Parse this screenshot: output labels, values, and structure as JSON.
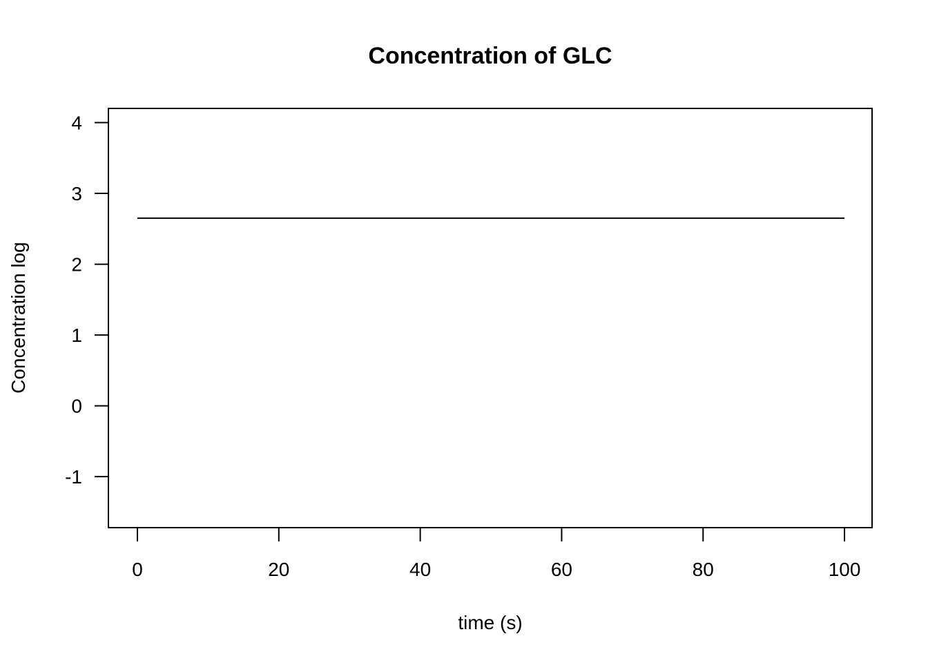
{
  "chart_data": {
    "type": "line",
    "title": "Concentration of GLC",
    "xlabel": "time (s)",
    "ylabel": "Concentration log",
    "xlim": [
      -4.1,
      103.9
    ],
    "ylim": [
      -1.72,
      4.2
    ],
    "xticks": [
      0,
      20,
      40,
      60,
      80,
      100
    ],
    "yticks": [
      -1,
      0,
      1,
      2,
      3,
      4
    ],
    "grid": false,
    "series": [
      {
        "x": [
          0,
          100
        ],
        "y": [
          2.65,
          2.65
        ],
        "color": "#000000"
      }
    ]
  }
}
